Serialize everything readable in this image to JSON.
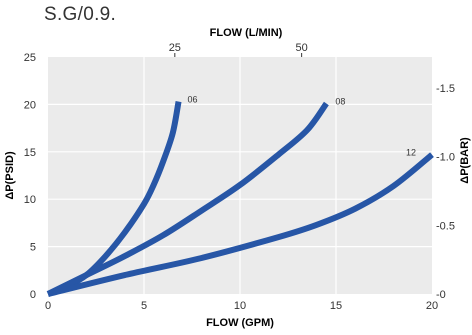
{
  "note": "S.G/0.9.",
  "colors": {
    "plot_bg": "#ebebeb",
    "grid": "#ffffff",
    "series": "#2756a6",
    "text": "#333333"
  },
  "chart_data": {
    "type": "line",
    "xlabel": "FLOW (GPM)",
    "ylabel": "ΔP(PSID)",
    "x2label": "FLOW (L/MIN)",
    "y2label": "ΔP(BAR)",
    "xlim": [
      0,
      20
    ],
    "ylim": [
      0,
      25
    ],
    "x_ticks": [
      "0",
      "5",
      "10",
      "15",
      "20"
    ],
    "y_ticks": [
      "0",
      "5",
      "10",
      "15",
      "20",
      "25"
    ],
    "x2_ticks": [
      {
        "value": 25,
        "label": "25"
      },
      {
        "value": 50,
        "label": "50"
      }
    ],
    "y2_ticks": [
      {
        "value": 0,
        "label": "-0"
      },
      {
        "value": 0.5,
        "label": "-0.5"
      },
      {
        "value": 1.0,
        "label": "-1.0"
      },
      {
        "value": 1.5,
        "label": "-1.5"
      }
    ],
    "grid": true,
    "series": [
      {
        "label": "06",
        "points": [
          [
            0,
            0
          ],
          [
            1,
            0.8
          ],
          [
            2,
            2
          ],
          [
            3,
            4
          ],
          [
            4,
            6.5
          ],
          [
            5,
            9.5
          ],
          [
            5.5,
            11.5
          ],
          [
            6,
            14
          ],
          [
            6.5,
            17
          ],
          [
            6.8,
            20.3
          ]
        ]
      },
      {
        "label": "08",
        "points": [
          [
            0,
            0
          ],
          [
            2,
            2
          ],
          [
            4,
            4
          ],
          [
            6,
            6.2
          ],
          [
            8,
            8.8
          ],
          [
            10,
            11.5
          ],
          [
            12,
            14.7
          ],
          [
            13.5,
            17.3
          ],
          [
            14.5,
            20.1
          ]
        ]
      },
      {
        "label": "12",
        "points": [
          [
            0,
            0
          ],
          [
            4,
            2
          ],
          [
            8,
            3.8
          ],
          [
            12,
            6
          ],
          [
            14,
            7.3
          ],
          [
            16,
            9
          ],
          [
            18,
            11.4
          ],
          [
            20,
            14.7
          ]
        ]
      }
    ]
  }
}
